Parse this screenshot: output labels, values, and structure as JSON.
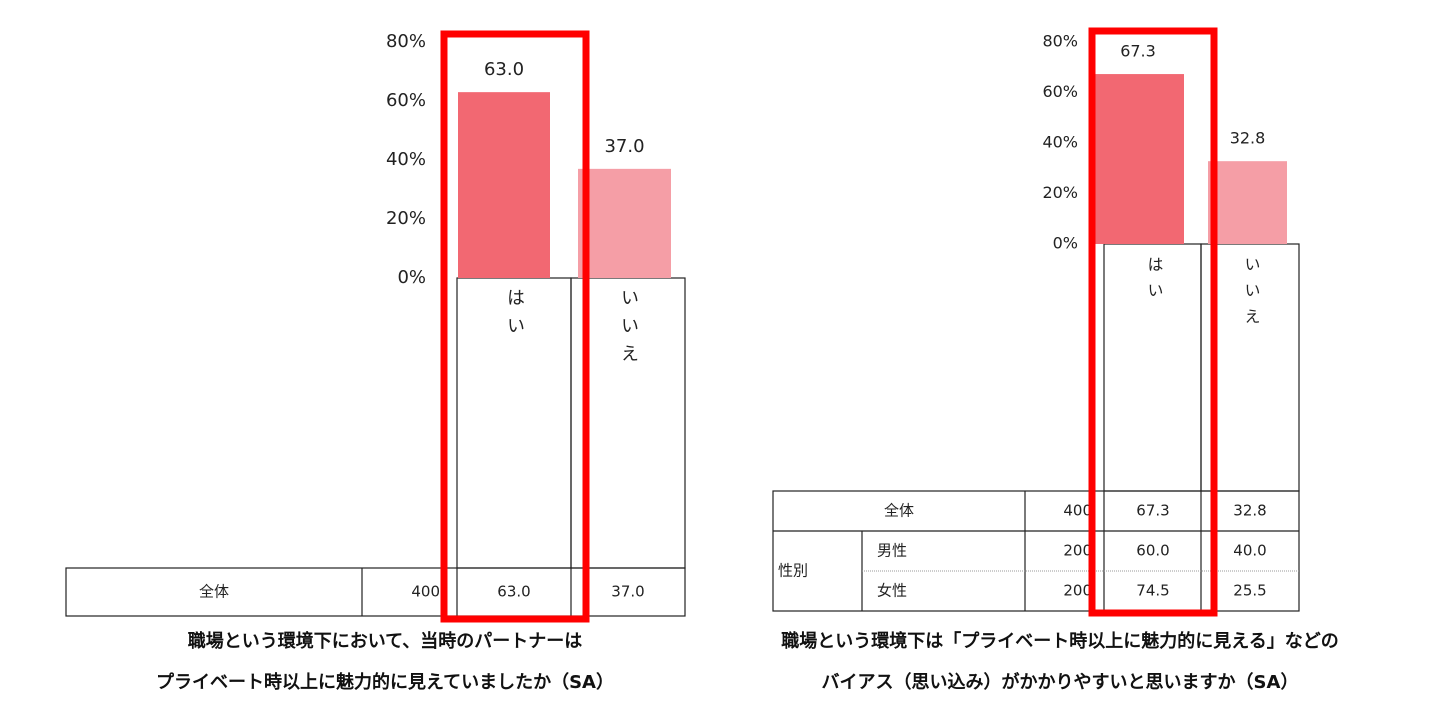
{
  "chart_data": [
    {
      "type": "bar",
      "categories": [
        "はい",
        "いいえ"
      ],
      "values": [
        63.0,
        37.0
      ],
      "value_labels": [
        "63.0",
        "37.0"
      ],
      "colors": [
        "#f26872",
        "#f59ea6"
      ],
      "ylim": [
        0,
        80
      ],
      "yticks": [
        {
          "value": 0,
          "label": "0%"
        },
        {
          "value": 20,
          "label": "20%"
        },
        {
          "value": 40,
          "label": "40%"
        },
        {
          "value": 60,
          "label": "60%"
        },
        {
          "value": 80,
          "label": "80%"
        }
      ],
      "table": {
        "rows": [
          [
            "全体",
            "400",
            "63.0",
            "37.0"
          ]
        ]
      },
      "caption": [
        "職場という環境下において、当時のパートナーは",
        "プライベート時以上に魅力的に見えていましたか（SA）"
      ]
    },
    {
      "type": "bar",
      "categories": [
        "はい",
        "いいえ"
      ],
      "values": [
        67.3,
        32.8
      ],
      "value_labels": [
        "67.3",
        "32.8"
      ],
      "colors": [
        "#f26872",
        "#f59ea6"
      ],
      "ylim": [
        0,
        80
      ],
      "yticks": [
        {
          "value": 0,
          "label": "0%"
        },
        {
          "value": 20,
          "label": "20%"
        },
        {
          "value": 40,
          "label": "40%"
        },
        {
          "value": 60,
          "label": "60%"
        },
        {
          "value": 80,
          "label": "80%"
        }
      ],
      "table": {
        "rows": [
          [
            "全体",
            "400",
            "67.3",
            "32.8"
          ],
          [
            "性別",
            "男性",
            "200",
            "60.0",
            "40.0"
          ],
          [
            "女性",
            "200",
            "74.5",
            "25.5"
          ]
        ]
      },
      "caption": [
        "職場という環境下は「プライベート時以上に魅力的に見える」などの",
        "バイアス（思い込み）がかかりやすいと思いますか（SA）"
      ]
    }
  ]
}
